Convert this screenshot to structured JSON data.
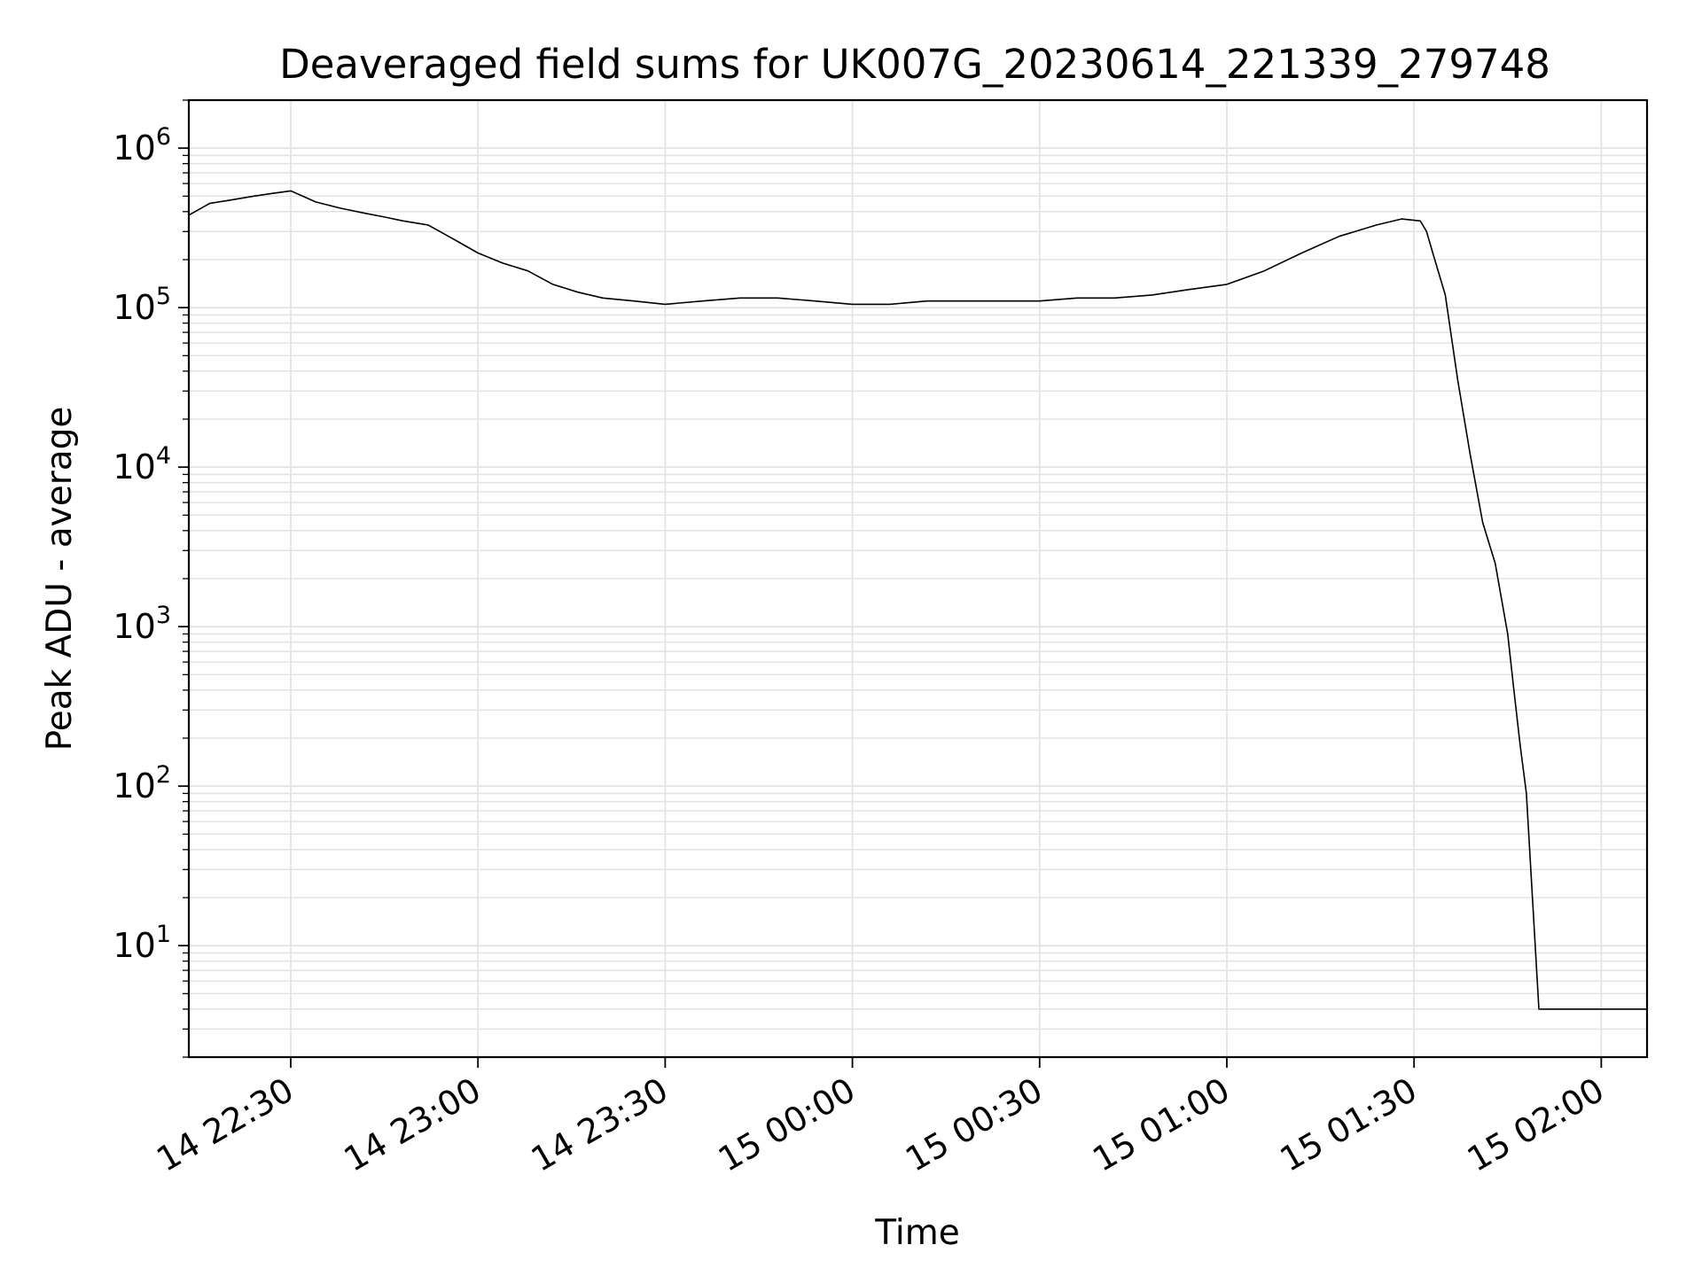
{
  "chart_data": {
    "type": "line",
    "title": "Deaveraged field sums for UK007G_20230614_221339_279748",
    "xlabel": "Time",
    "ylabel": "Peak ADU - average",
    "yscale": "log",
    "ylim": [
      2,
      2000000
    ],
    "xlim": [
      "2023-06-14 22:13:40",
      "2023-06-15 02:07:20"
    ],
    "grid": true,
    "line_color": "#000000",
    "grid_color": "#e3e3e3",
    "x_ticks": [
      {
        "value": "2023-06-14 22:30:00",
        "label": "14 22:30"
      },
      {
        "value": "2023-06-14 23:00:00",
        "label": "14 23:00"
      },
      {
        "value": "2023-06-14 23:30:00",
        "label": "14 23:30"
      },
      {
        "value": "2023-06-15 00:00:00",
        "label": "15 00:00"
      },
      {
        "value": "2023-06-15 00:30:00",
        "label": "15 00:30"
      },
      {
        "value": "2023-06-15 01:00:00",
        "label": "15 01:00"
      },
      {
        "value": "2023-06-15 01:30:00",
        "label": "15 01:30"
      },
      {
        "value": "2023-06-15 02:00:00",
        "label": "15 02:00"
      }
    ],
    "y_ticks": [
      {
        "value": 10,
        "base": "10",
        "exp": "1"
      },
      {
        "value": 100,
        "base": "10",
        "exp": "2"
      },
      {
        "value": 1000,
        "base": "10",
        "exp": "3"
      },
      {
        "value": 10000,
        "base": "10",
        "exp": "4"
      },
      {
        "value": 100000,
        "base": "10",
        "exp": "5"
      },
      {
        "value": 1000000,
        "base": "10",
        "exp": "6"
      }
    ],
    "series": [
      {
        "x": [
          "2023-06-14 22:13:40",
          "2023-06-14 22:17:00",
          "2023-06-14 22:20:00",
          "2023-06-14 22:24:00",
          "2023-06-14 22:27:00",
          "2023-06-14 22:30:00",
          "2023-06-14 22:34:00",
          "2023-06-14 22:38:00",
          "2023-06-14 22:42:00",
          "2023-06-14 22:45:00",
          "2023-06-14 22:48:00",
          "2023-06-14 22:52:00",
          "2023-06-14 22:56:00",
          "2023-06-14 23:00:00",
          "2023-06-14 23:04:00",
          "2023-06-14 23:08:00",
          "2023-06-14 23:12:00",
          "2023-06-14 23:16:00",
          "2023-06-14 23:20:00",
          "2023-06-14 23:25:00",
          "2023-06-14 23:30:00",
          "2023-06-14 23:36:00",
          "2023-06-14 23:42:00",
          "2023-06-14 23:48:00",
          "2023-06-14 23:54:00",
          "2023-06-15 00:00:00",
          "2023-06-15 00:06:00",
          "2023-06-15 00:12:00",
          "2023-06-15 00:18:00",
          "2023-06-15 00:24:00",
          "2023-06-15 00:30:00",
          "2023-06-15 00:36:00",
          "2023-06-15 00:42:00",
          "2023-06-15 00:48:00",
          "2023-06-15 00:54:00",
          "2023-06-15 01:00:00",
          "2023-06-15 01:06:00",
          "2023-06-15 01:12:00",
          "2023-06-15 01:18:00",
          "2023-06-15 01:24:00",
          "2023-06-15 01:28:00",
          "2023-06-15 01:31:00",
          "2023-06-15 01:32:00",
          "2023-06-15 01:33:00",
          "2023-06-15 01:35:00",
          "2023-06-15 01:37:00",
          "2023-06-15 01:39:00",
          "2023-06-15 01:41:00",
          "2023-06-15 01:43:00",
          "2023-06-15 01:45:00",
          "2023-06-15 01:46:00",
          "2023-06-15 01:47:00",
          "2023-06-15 01:48:00",
          "2023-06-15 01:50:00",
          "2023-06-15 01:55:00",
          "2023-06-15 02:00:00",
          "2023-06-15 02:07:20"
        ],
        "y": [
          380000,
          450000,
          470000,
          500000,
          520000,
          540000,
          460000,
          420000,
          390000,
          370000,
          350000,
          330000,
          270000,
          220000,
          190000,
          170000,
          140000,
          125000,
          115000,
          110000,
          105000,
          110000,
          115000,
          115000,
          110000,
          105000,
          105000,
          110000,
          110000,
          110000,
          110000,
          115000,
          115000,
          120000,
          130000,
          140000,
          170000,
          220000,
          280000,
          330000,
          360000,
          350000,
          300000,
          220000,
          120000,
          35000,
          12000,
          4500,
          2500,
          900,
          400,
          180,
          90,
          4,
          4,
          4,
          4
        ]
      }
    ]
  }
}
